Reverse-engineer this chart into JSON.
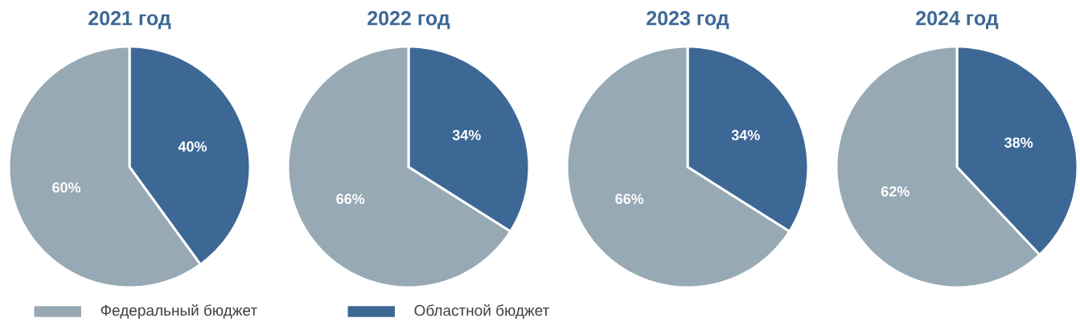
{
  "chart_data": [
    {
      "type": "pie",
      "title": "2021 год",
      "categories": [
        "Областной бюджет",
        "Федеральный бюджет"
      ],
      "values": [
        40,
        60
      ],
      "value_labels": [
        "40%",
        "60%"
      ],
      "colors": [
        "#3d6896",
        "#97a9b4"
      ],
      "legend": "bottom"
    },
    {
      "type": "pie",
      "title": "2022 год",
      "categories": [
        null,
        null
      ],
      "values": [
        34,
        66
      ],
      "value_labels": [
        "34%",
        "66%"
      ],
      "colors": [
        "#3d6896",
        "#97a9b4"
      ]
    },
    {
      "type": "pie",
      "title": "2023 год",
      "categories": [
        null,
        null
      ],
      "values": [
        34,
        66
      ],
      "value_labels": [
        "34%",
        "66%"
      ],
      "colors": [
        "#3d6896",
        "#97a9b4"
      ]
    },
    {
      "type": "pie",
      "title": "2024 год",
      "categories": [
        null,
        null
      ],
      "values": [
        38,
        62
      ],
      "value_labels": [
        "38%",
        "62%"
      ],
      "colors": [
        "#3d6896",
        "#97a9b4"
      ]
    }
  ]
}
